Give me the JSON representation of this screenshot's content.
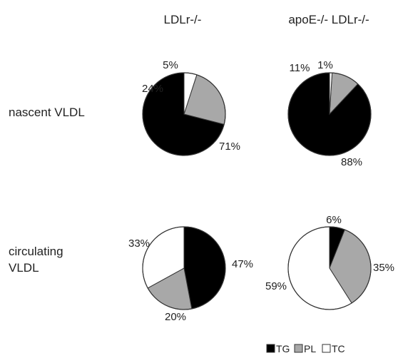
{
  "chart_data": [
    {
      "type": "pie",
      "column": "LDLr-/-",
      "row": "nascent VLDL",
      "slices": [
        {
          "name": "TG",
          "value": 71,
          "label": "71%"
        },
        {
          "name": "PL",
          "value": 24,
          "label": "24%"
        },
        {
          "name": "TC",
          "value": 5,
          "label": "5%"
        }
      ]
    },
    {
      "type": "pie",
      "column": "apoE-/- LDLr-/-",
      "row": "nascent VLDL",
      "slices": [
        {
          "name": "TG",
          "value": 88,
          "label": "88%"
        },
        {
          "name": "PL",
          "value": 11,
          "label": "11%"
        },
        {
          "name": "TC",
          "value": 1,
          "label": "1%"
        }
      ]
    },
    {
      "type": "pie",
      "column": "LDLr-/-",
      "row": "circulating VLDL",
      "slices": [
        {
          "name": "TG",
          "value": 47,
          "label": "47%"
        },
        {
          "name": "PL",
          "value": 20,
          "label": "20%"
        },
        {
          "name": "TC",
          "value": 33,
          "label": "33%"
        }
      ]
    },
    {
      "type": "pie",
      "column": "apoE-/- LDLr-/-",
      "row": "circulating VLDL",
      "slices": [
        {
          "name": "TG",
          "value": 6,
          "label": "6%"
        },
        {
          "name": "PL",
          "value": 35,
          "label": "35%"
        },
        {
          "name": "TC",
          "value": 59,
          "label": "59%"
        }
      ]
    }
  ],
  "columns": [
    "LDLr-/-",
    "apoE-/- LDLr-/-"
  ],
  "rows": [
    [
      "nascent VLDL"
    ],
    [
      "circulating",
      "VLDL"
    ]
  ],
  "legend": {
    "placement": "bottom-right",
    "items": [
      {
        "name": "TG",
        "color": "#000000"
      },
      {
        "name": "PL",
        "color": "#a8a8a8"
      },
      {
        "name": "TC",
        "color": "#ffffff"
      }
    ]
  },
  "colors": {
    "TG": "#000000",
    "PL": "#a8a8a8",
    "TC": "#ffffff",
    "stroke": "#333333"
  }
}
